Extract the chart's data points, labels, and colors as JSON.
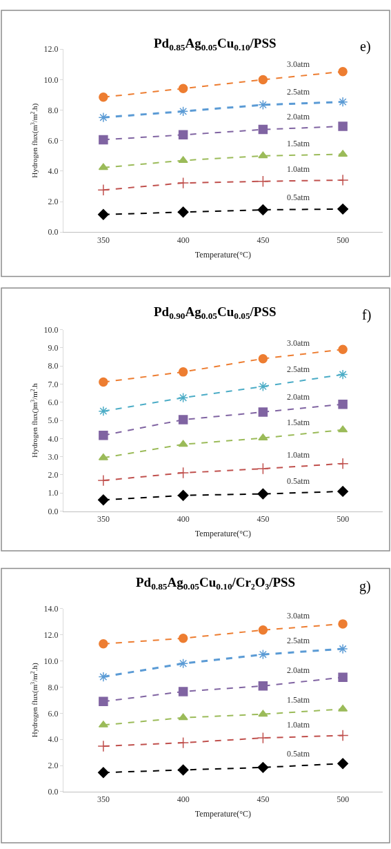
{
  "chart_data": [
    {
      "type": "line",
      "title": "Pd$_{0.85}$Ag$_{0.05}$Cu$_{0.10}$/PSS",
      "xlabel": "Temperature(°C)",
      "ylabel": "Hydrogen flux(m$^{3}$/m$^{2}$.h)",
      "annotations": [
        "e)"
      ],
      "categories": [
        "350",
        "400",
        "450",
        "500"
      ],
      "ylim": [
        0,
        12
      ],
      "yticks": [
        {
          "value": 0,
          "label": "0.0"
        },
        {
          "value": 2,
          "label": "2.0"
        },
        {
          "value": 4,
          "label": "4.0"
        },
        {
          "value": 6,
          "label": "6.0"
        },
        {
          "value": 8,
          "label": "8.0"
        },
        {
          "value": 10,
          "label": "10.0"
        },
        {
          "value": 12,
          "label": "12.0"
        }
      ],
      "line_style": "dashed",
      "series": [
        {
          "name": "3.0atm",
          "color": "#ed7d31",
          "marker": "circle",
          "values": [
            8.85,
            9.42,
            10.0,
            10.53
          ]
        },
        {
          "name": "2.5atm",
          "color": "#5b9bd5",
          "marker": "cross",
          "values": [
            7.52,
            7.92,
            8.35,
            8.54
          ]
        },
        {
          "name": "2.0atm",
          "color": "#8064a2",
          "marker": "square",
          "values": [
            6.06,
            6.38,
            6.73,
            6.94
          ]
        },
        {
          "name": "1.5atm",
          "color": "#9bbb59",
          "marker": "triangle",
          "values": [
            4.23,
            4.7,
            5.0,
            5.11
          ]
        },
        {
          "name": "1.0atm",
          "color": "#c0504d",
          "marker": "cross",
          "values": [
            2.76,
            3.22,
            3.33,
            3.41
          ]
        },
        {
          "name": "0.5atm",
          "color": "#000000",
          "marker": "diamond",
          "values": [
            1.15,
            1.31,
            1.46,
            1.51
          ]
        }
      ]
    },
    {
      "type": "line",
      "title": "Pd$_{0.90}$Ag$_{0.05}$Cu$_{0.05}$/PSS",
      "xlabel": "Temperature(°C)",
      "ylabel": "Hydrogen flux()m$^{3}$/m$^{2}$.h",
      "annotations": [
        "f)"
      ],
      "categories": [
        "350",
        "400",
        "450",
        "500"
      ],
      "ylim": [
        0,
        10
      ],
      "yticks": [
        {
          "value": 0,
          "label": "0.0"
        },
        {
          "value": 1,
          "label": "1.0"
        },
        {
          "value": 2,
          "label": "2.0"
        },
        {
          "value": 3,
          "label": "3.0"
        },
        {
          "value": 4,
          "label": "4.0"
        },
        {
          "value": 5,
          "label": "5.0"
        },
        {
          "value": 6,
          "label": "6.0"
        },
        {
          "value": 7,
          "label": "7.0"
        },
        {
          "value": 8,
          "label": "8.0"
        },
        {
          "value": 9,
          "label": "9.0"
        },
        {
          "value": 10,
          "label": "10.0"
        }
      ],
      "line_style": "dashed",
      "series": [
        {
          "name": "3.0atm",
          "color": "#ed7d31",
          "marker": "circle",
          "values": [
            7.11,
            7.67,
            8.4,
            8.91
          ]
        },
        {
          "name": "2.5atm",
          "color": "#4bacc6",
          "marker": "cross",
          "values": [
            5.51,
            6.25,
            6.87,
            7.53
          ]
        },
        {
          "name": "2.0atm",
          "color": "#8064a2",
          "marker": "square",
          "values": [
            4.18,
            5.04,
            5.46,
            5.89
          ]
        },
        {
          "name": "1.5atm",
          "color": "#9bbb59",
          "marker": "triangle",
          "values": [
            2.94,
            3.68,
            4.03,
            4.48
          ]
        },
        {
          "name": "1.0atm",
          "color": "#c0504d",
          "marker": "cross",
          "values": [
            1.69,
            2.11,
            2.34,
            2.62
          ]
        },
        {
          "name": "0.5atm",
          "color": "#000000",
          "marker": "diamond",
          "values": [
            0.62,
            0.87,
            0.95,
            1.09
          ]
        }
      ]
    },
    {
      "type": "line",
      "title": "Pd$_{0.85}$Ag$_{0.05}$Cu$_{0.10}$/Cr₂O₃/PSS",
      "xlabel": "Temperature(°C)",
      "ylabel": "Hydrogen flux(m$^{3}$/m$^{2}$.h)",
      "annotations": [
        "g)"
      ],
      "categories": [
        "350",
        "400",
        "450",
        "500"
      ],
      "ylim": [
        0,
        14
      ],
      "yticks": [
        {
          "value": 0,
          "label": "0.0"
        },
        {
          "value": 2,
          "label": "2.0"
        },
        {
          "value": 4,
          "label": "4.0"
        },
        {
          "value": 6,
          "label": "6.0"
        },
        {
          "value": 8,
          "label": "8.0"
        },
        {
          "value": 10,
          "label": "10.0"
        },
        {
          "value": 12,
          "label": "12.0"
        },
        {
          "value": 14,
          "label": "14.0"
        }
      ],
      "line_style": "dashed",
      "series": [
        {
          "name": "3.0atm",
          "color": "#ed7d31",
          "marker": "circle",
          "values": [
            11.31,
            11.74,
            12.37,
            12.84
          ]
        },
        {
          "name": "2.5atm",
          "color": "#5b9bd5",
          "marker": "cross",
          "values": [
            8.79,
            9.81,
            10.5,
            10.93
          ]
        },
        {
          "name": "2.0atm",
          "color": "#8064a2",
          "marker": "square",
          "values": [
            6.9,
            7.66,
            8.09,
            8.75
          ]
        },
        {
          "name": "1.5atm",
          "color": "#9bbb59",
          "marker": "triangle",
          "values": [
            5.1,
            5.66,
            5.93,
            6.32
          ]
        },
        {
          "name": "1.0atm",
          "color": "#c0504d",
          "marker": "cross",
          "values": [
            3.48,
            3.74,
            4.11,
            4.3
          ]
        },
        {
          "name": "0.5atm",
          "color": "#000000",
          "marker": "diamond",
          "values": [
            1.46,
            1.66,
            1.85,
            2.15
          ]
        }
      ]
    }
  ]
}
